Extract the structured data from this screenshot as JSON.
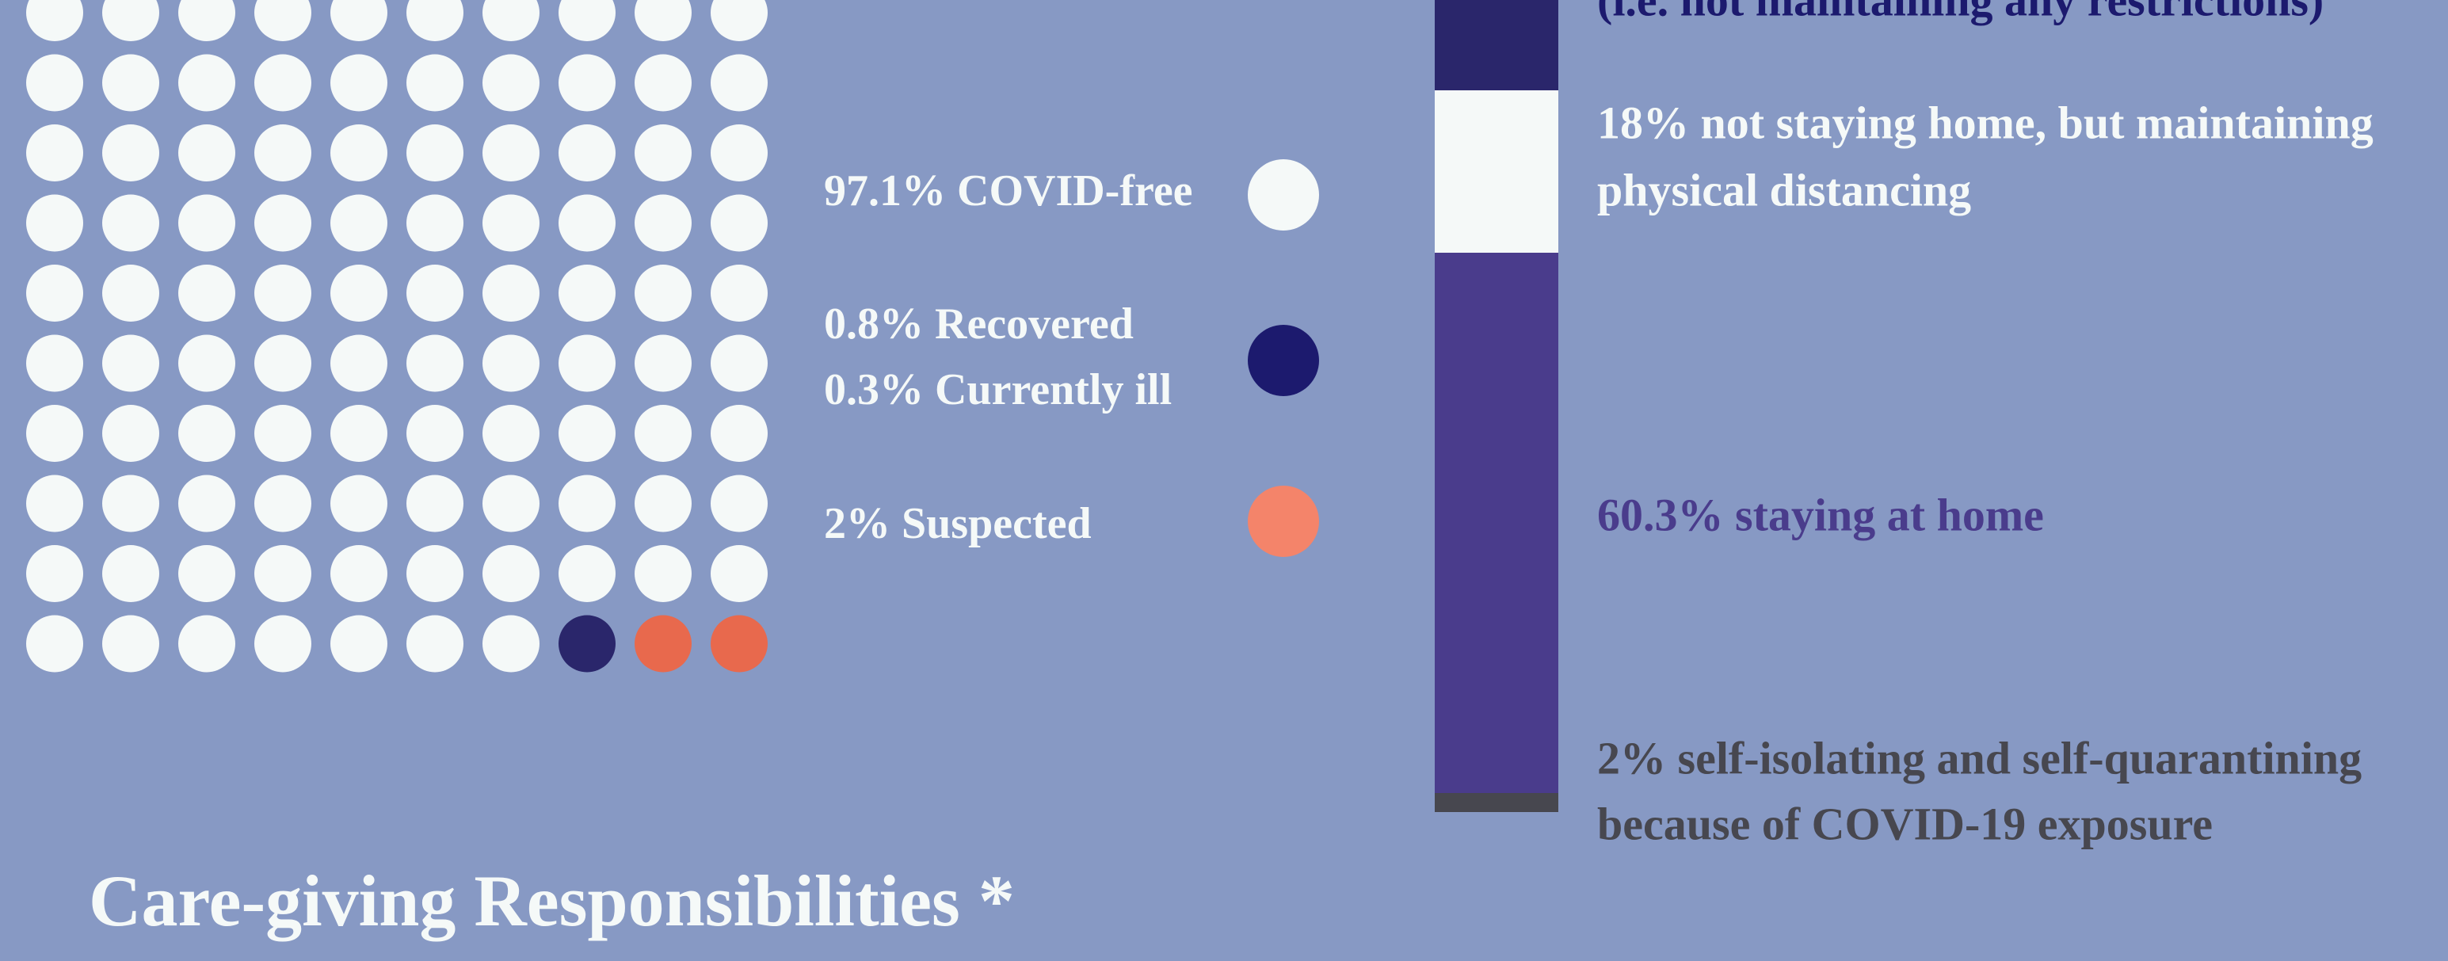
{
  "legend": {
    "items": [
      {
        "label": "97.1% COVID-free",
        "color": "#f5f9f8"
      },
      {
        "label": "0.8% Recovered",
        "label2": "0.3% Currently ill",
        "color": "#1c1a6e"
      },
      {
        "label": "2% Suspected",
        "color": "#f4846a"
      }
    ]
  },
  "bar_labels": {
    "top": "(i.e. not maintaining any restrictions)",
    "distancing": [
      "18% not staying home, but maintaining",
      "physical distancing"
    ],
    "home": "60.3% staying at home",
    "isolating": [
      "2% self-isolating and self-quarantining",
      "because of COVID-19 exposure"
    ]
  },
  "section_title": "Care-giving Responsibilities *"
}
